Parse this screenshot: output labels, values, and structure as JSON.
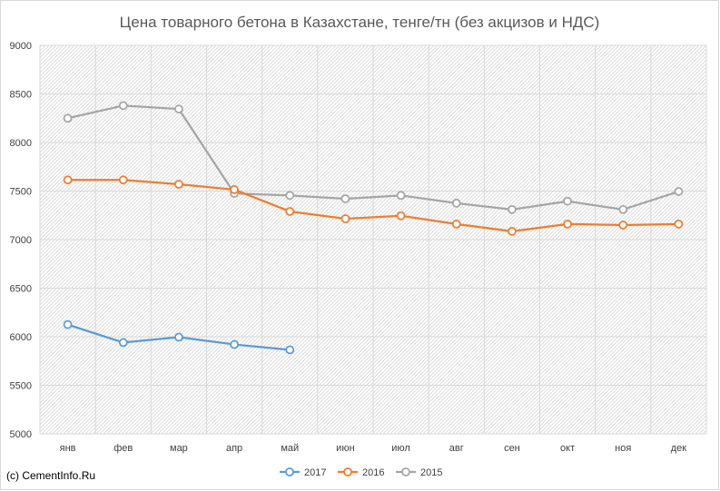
{
  "chart_data": {
    "type": "line",
    "title": "Цена товарного бетона в Казахстане, тенге/тн (без акцизов и НДС)",
    "xlabel": "",
    "ylabel": "",
    "categories": [
      "янв",
      "фев",
      "мар",
      "апр",
      "май",
      "июн",
      "июл",
      "авг",
      "сен",
      "окт",
      "ноя",
      "дек"
    ],
    "ylim": [
      5000,
      9000
    ],
    "yticks": [
      5000,
      5500,
      6000,
      6500,
      7000,
      7500,
      8000,
      8500,
      9000
    ],
    "grid": true,
    "legend_position": "bottom",
    "series": [
      {
        "name": "2017",
        "color": "#5b9bd5",
        "values": [
          6125,
          5940,
          5995,
          5920,
          5865,
          null,
          null,
          null,
          null,
          null,
          null,
          null
        ]
      },
      {
        "name": "2016",
        "color": "#ed7d31",
        "values": [
          7615,
          7615,
          7570,
          7515,
          7290,
          7215,
          7245,
          7160,
          7085,
          7160,
          7150,
          7160
        ]
      },
      {
        "name": "2015",
        "color": "#a5a5a5",
        "values": [
          8250,
          8380,
          8345,
          7475,
          7455,
          7420,
          7455,
          7375,
          7310,
          7395,
          7310,
          7495
        ]
      }
    ]
  },
  "source": "(c) CementInfo.Ru"
}
